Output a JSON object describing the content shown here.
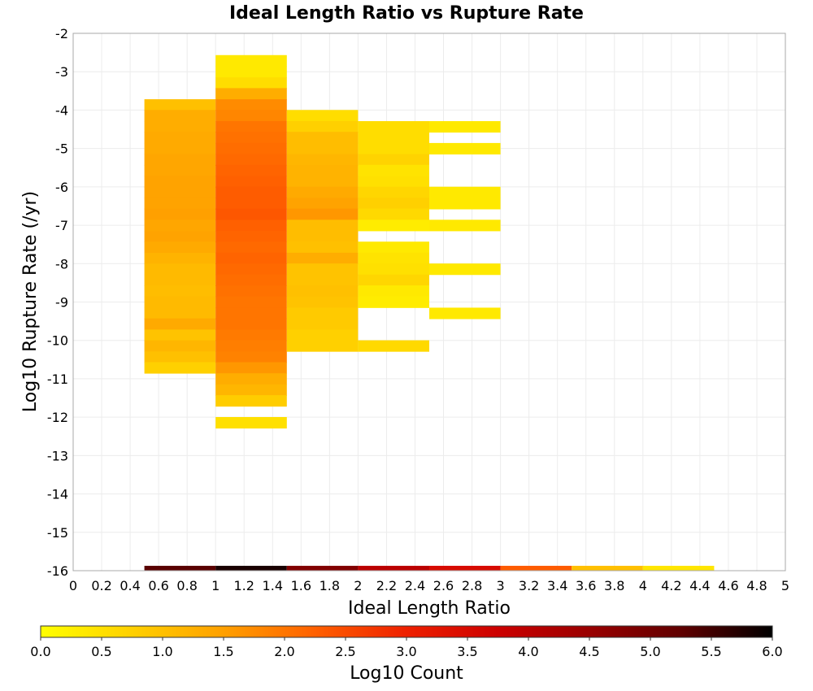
{
  "chart_data": {
    "type": "heatmap",
    "title": "Ideal Length Ratio vs Rupture Rate",
    "xlabel": "Ideal Length Ratio",
    "ylabel": "Log10 Rupture Rate (/yr)",
    "xlim": [
      0,
      5
    ],
    "ylim": [
      -16,
      -2
    ],
    "x_ticks": [
      "0",
      "0.2",
      "0.4",
      "0.6",
      "0.8",
      "1",
      "1.2",
      "1.4",
      "1.6",
      "1.8",
      "2",
      "2.2",
      "2.4",
      "2.6",
      "2.8",
      "3",
      "3.2",
      "3.4",
      "3.6",
      "3.8",
      "4",
      "4.2",
      "4.4",
      "4.6",
      "4.8",
      "5"
    ],
    "y_ticks": [
      "-2",
      "-3",
      "-4",
      "-5",
      "-6",
      "-7",
      "-8",
      "-9",
      "-10",
      "-11",
      "-12",
      "-13",
      "-14",
      "-15",
      "-16"
    ],
    "grid": true,
    "colorbar": {
      "label": "Log10 Count",
      "min": 0.0,
      "max": 6.0,
      "ticks": [
        "0.0",
        "0.5",
        "1.0",
        "1.5",
        "2.0",
        "2.5",
        "3.0",
        "3.5",
        "4.0",
        "4.5",
        "5.0",
        "5.5",
        "6.0"
      ],
      "colors": [
        "#ffff00",
        "#ffd000",
        "#ffa000",
        "#ff6000",
        "#ee2000",
        "#cc0000",
        "#990000",
        "#600000",
        "#000000"
      ]
    },
    "cell_height": 0.2857,
    "columns": [
      {
        "x0": 0.5,
        "x1": 1.0,
        "cells": [
          [
            -3.86,
            1.0
          ],
          [
            -4.14,
            1.3
          ],
          [
            -4.43,
            1.3
          ],
          [
            -4.71,
            1.35
          ],
          [
            -5.0,
            1.35
          ],
          [
            -5.29,
            1.4
          ],
          [
            -5.57,
            1.4
          ],
          [
            -5.86,
            1.45
          ],
          [
            -6.14,
            1.45
          ],
          [
            -6.43,
            1.45
          ],
          [
            -6.71,
            1.5
          ],
          [
            -7.0,
            1.4
          ],
          [
            -7.29,
            1.45
          ],
          [
            -7.57,
            1.35
          ],
          [
            -7.86,
            1.2
          ],
          [
            -8.14,
            1.1
          ],
          [
            -8.43,
            1.1
          ],
          [
            -8.71,
            1.05
          ],
          [
            -9.0,
            1.1
          ],
          [
            -9.29,
            1.1
          ],
          [
            -9.57,
            1.35
          ],
          [
            -9.86,
            0.95
          ],
          [
            -10.14,
            1.15
          ],
          [
            -10.43,
            1.0
          ],
          [
            -10.71,
            0.75
          ]
        ]
      },
      {
        "x0": 1.0,
        "x1": 1.5,
        "cells": [
          [
            -2.71,
            0.35
          ],
          [
            -3.0,
            0.35
          ],
          [
            -3.29,
            0.55
          ],
          [
            -3.57,
            1.3
          ],
          [
            -3.86,
            1.75
          ],
          [
            -4.14,
            1.8
          ],
          [
            -4.43,
            2.0
          ],
          [
            -4.71,
            2.05
          ],
          [
            -5.0,
            2.1
          ],
          [
            -5.29,
            2.15
          ],
          [
            -5.57,
            2.2
          ],
          [
            -5.86,
            2.25
          ],
          [
            -6.14,
            2.3
          ],
          [
            -6.43,
            2.3
          ],
          [
            -6.71,
            2.35
          ],
          [
            -7.0,
            2.25
          ],
          [
            -7.29,
            2.2
          ],
          [
            -7.57,
            2.15
          ],
          [
            -7.86,
            2.2
          ],
          [
            -8.14,
            2.15
          ],
          [
            -8.43,
            2.1
          ],
          [
            -8.71,
            2.05
          ],
          [
            -9.0,
            2.0
          ],
          [
            -9.29,
            2.0
          ],
          [
            -9.57,
            2.0
          ],
          [
            -9.86,
            1.95
          ],
          [
            -10.14,
            1.9
          ],
          [
            -10.43,
            1.85
          ],
          [
            -10.71,
            1.6
          ],
          [
            -11.0,
            1.3
          ],
          [
            -11.29,
            1.15
          ],
          [
            -11.57,
            0.8
          ],
          [
            -12.14,
            0.5
          ]
        ]
      },
      {
        "x0": 1.5,
        "x1": 2.0,
        "cells": [
          [
            -4.14,
            0.55
          ],
          [
            -4.43,
            0.75
          ],
          [
            -4.71,
            1.05
          ],
          [
            -5.0,
            1.05
          ],
          [
            -5.29,
            1.15
          ],
          [
            -5.57,
            1.2
          ],
          [
            -5.86,
            1.2
          ],
          [
            -6.14,
            1.35
          ],
          [
            -6.43,
            1.45
          ],
          [
            -6.71,
            1.6
          ],
          [
            -7.0,
            1.05
          ],
          [
            -7.29,
            1.05
          ],
          [
            -7.57,
            1.0
          ],
          [
            -7.86,
            1.3
          ],
          [
            -8.14,
            0.95
          ],
          [
            -8.43,
            0.95
          ],
          [
            -8.71,
            1.0
          ],
          [
            -9.0,
            0.95
          ],
          [
            -9.29,
            0.85
          ],
          [
            -9.57,
            0.85
          ],
          [
            -9.86,
            0.75
          ],
          [
            -10.14,
            0.75
          ]
        ]
      },
      {
        "x0": 2.0,
        "x1": 2.5,
        "cells": [
          [
            -4.43,
            0.55
          ],
          [
            -4.71,
            0.55
          ],
          [
            -5.0,
            0.55
          ],
          [
            -5.29,
            0.7
          ],
          [
            -5.57,
            0.45
          ],
          [
            -5.86,
            0.5
          ],
          [
            -6.14,
            0.65
          ],
          [
            -6.43,
            0.75
          ],
          [
            -6.71,
            0.6
          ],
          [
            -7.0,
            0.3
          ],
          [
            -7.57,
            0.35
          ],
          [
            -7.86,
            0.45
          ],
          [
            -8.14,
            0.5
          ],
          [
            -8.43,
            0.65
          ],
          [
            -8.71,
            0.35
          ],
          [
            -9.0,
            0.3
          ],
          [
            -10.14,
            0.6
          ]
        ]
      },
      {
        "x0": 2.5,
        "x1": 3.0,
        "cells": [
          [
            -4.43,
            0.35
          ],
          [
            -5.0,
            0.35
          ],
          [
            -6.14,
            0.35
          ],
          [
            -6.43,
            0.35
          ],
          [
            -7.0,
            0.35
          ],
          [
            -8.14,
            0.35
          ],
          [
            -9.29,
            0.35
          ]
        ]
      }
    ],
    "marginal_strip": {
      "y": -16,
      "bins": [
        {
          "x0": 0.5,
          "x1": 1.0,
          "value": 5.3
        },
        {
          "x0": 1.0,
          "x1": 1.5,
          "value": 5.8
        },
        {
          "x0": 1.5,
          "x1": 2.0,
          "value": 4.8
        },
        {
          "x0": 2.0,
          "x1": 2.5,
          "value": 4.0
        },
        {
          "x0": 2.5,
          "x1": 3.0,
          "value": 3.5
        },
        {
          "x0": 3.0,
          "x1": 3.5,
          "value": 2.3
        },
        {
          "x0": 3.5,
          "x1": 4.0,
          "value": 1.0
        },
        {
          "x0": 4.0,
          "x1": 4.5,
          "value": 0.4
        }
      ]
    }
  }
}
